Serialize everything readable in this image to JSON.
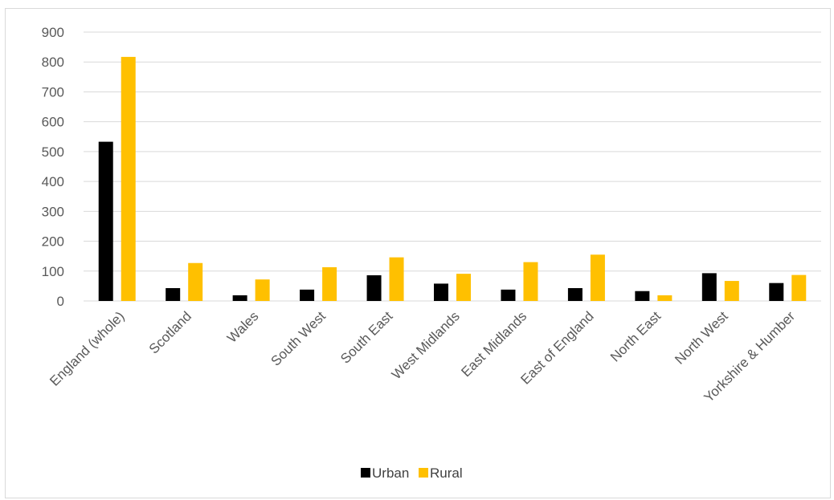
{
  "chart_data": {
    "type": "bar",
    "categories": [
      "England (whole)",
      "Scotland",
      "Wales",
      "South West",
      "South East",
      "West Midlands",
      "East Midlands",
      "East of England",
      "North East",
      "North West",
      "Yorkshire & Humber"
    ],
    "series": [
      {
        "name": "Urban",
        "color": "#000000",
        "values": [
          533,
          43,
          19,
          38,
          86,
          58,
          38,
          43,
          33,
          93,
          60
        ]
      },
      {
        "name": "Rural",
        "color": "#ffc000",
        "values": [
          817,
          127,
          72,
          113,
          146,
          91,
          130,
          155,
          19,
          67,
          87
        ]
      }
    ],
    "y_ticks": [
      "0",
      "100",
      "200",
      "300",
      "400",
      "500",
      "600",
      "700",
      "800",
      "900"
    ],
    "ylim": [
      0,
      900
    ],
    "grid": true,
    "legend_position": "bottom",
    "title": "",
    "xlabel": "",
    "ylabel": ""
  }
}
